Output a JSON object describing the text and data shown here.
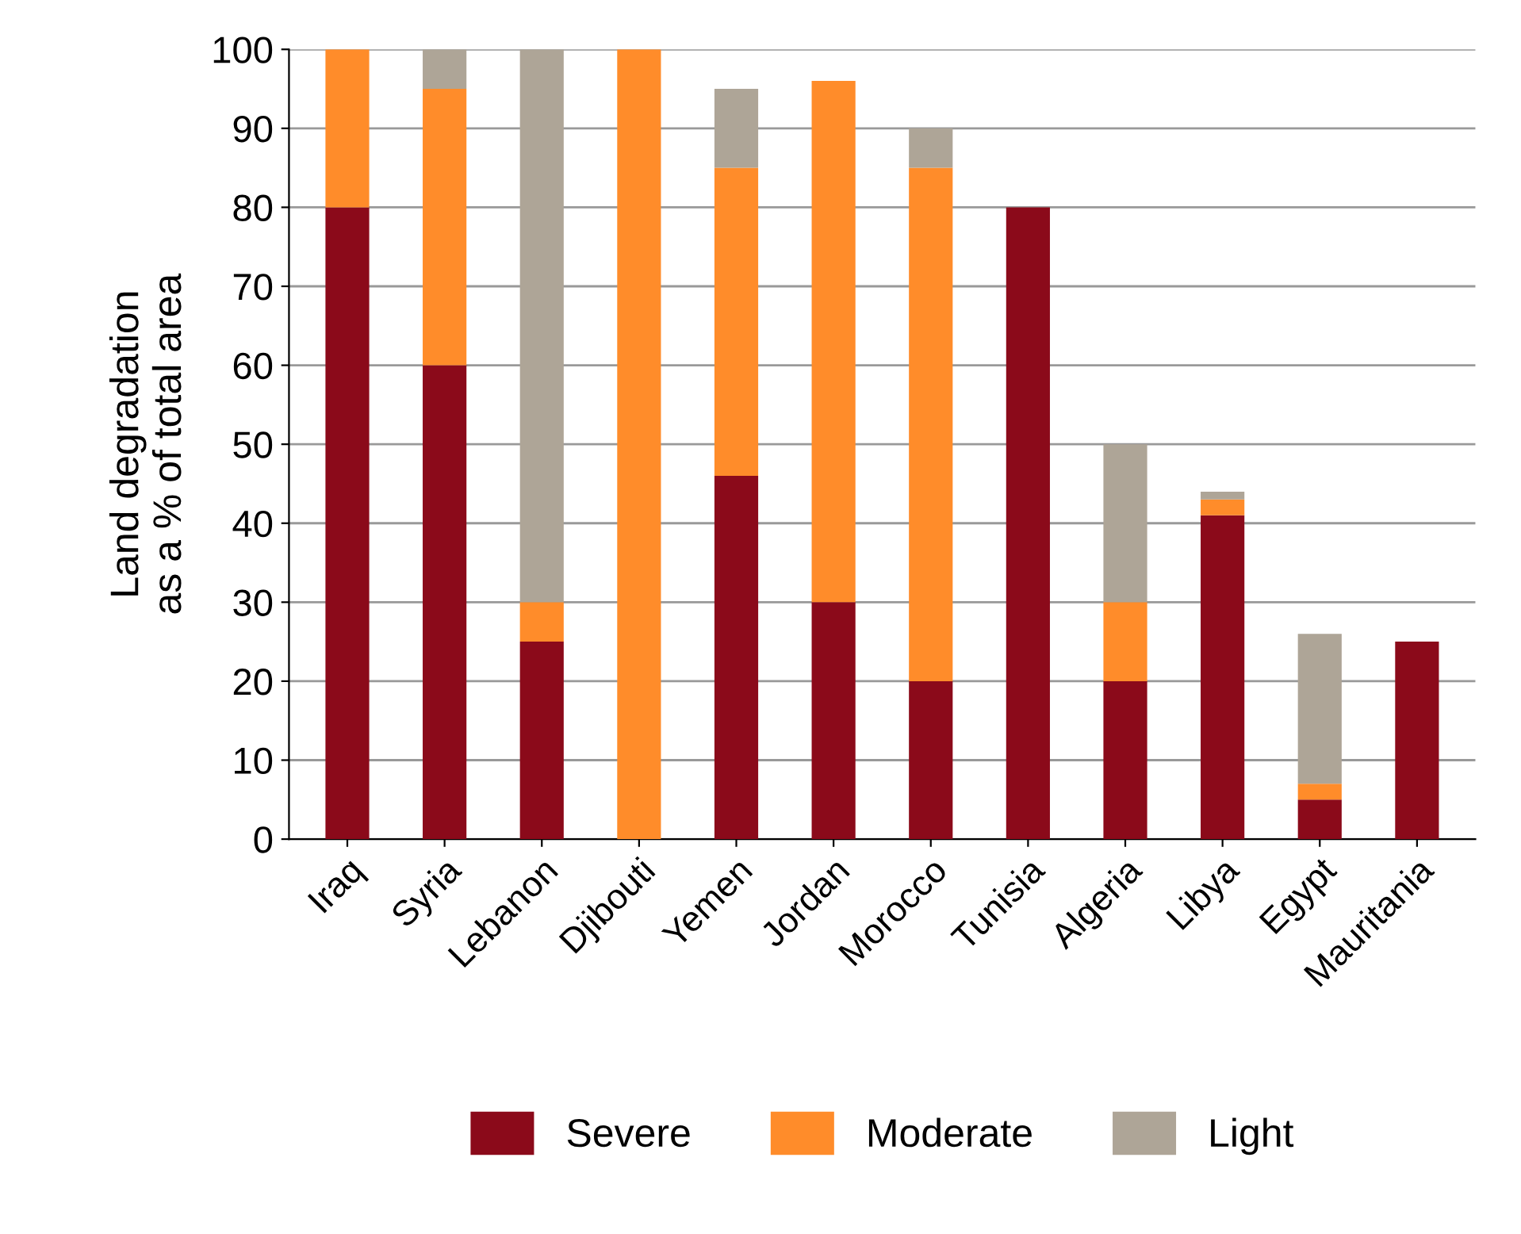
{
  "chart_data": {
    "type": "bar",
    "stacked": true,
    "ylabel": "Land degradation\nas a % of total area",
    "categories": [
      "Iraq",
      "Syria",
      "Lebanon",
      "Djibouti",
      "Yemen",
      "Jordan",
      "Morocco",
      "Tunisia",
      "Algeria",
      "Libya",
      "Egypt",
      "Mauritania"
    ],
    "series": [
      {
        "name": "Severe",
        "color": "#8b0a1a",
        "values": [
          80,
          60,
          25,
          0,
          46,
          30,
          20,
          80,
          20,
          41,
          5,
          25
        ]
      },
      {
        "name": "Moderate",
        "color": "#ff8c2a",
        "values": [
          20,
          35,
          5,
          100,
          39,
          66,
          65,
          0,
          10,
          2,
          2,
          0
        ]
      },
      {
        "name": "Light",
        "color": "#aea597",
        "values": [
          0,
          5,
          70,
          0,
          10,
          0,
          5,
          0,
          20,
          1,
          19,
          0
        ]
      }
    ],
    "ylim": [
      0,
      100
    ],
    "yticks": [
      0,
      10,
      20,
      30,
      40,
      50,
      60,
      70,
      80,
      90,
      100
    ],
    "grid": "y",
    "legend": "bottom"
  }
}
